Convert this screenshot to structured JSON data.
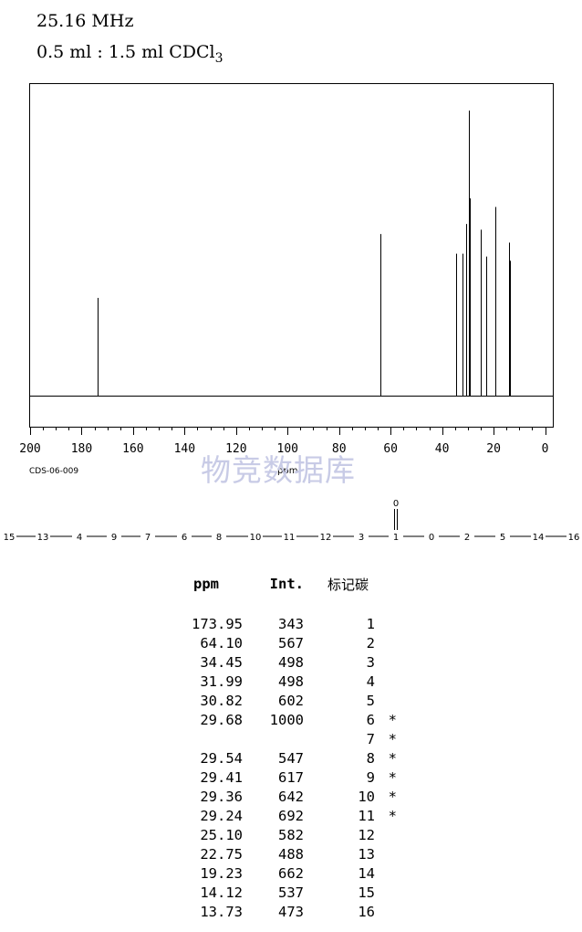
{
  "header": {
    "frequency": "25.16 MHz",
    "solvent_prefix": "0.5 ml : 1.5 ml CDCl",
    "solvent_subscript": "3"
  },
  "chart_data": {
    "type": "line",
    "title": "",
    "xlabel": "ppm",
    "ylabel": "",
    "xlim": [
      200,
      -3
    ],
    "x_ticks": [
      "200",
      "180",
      "160",
      "140",
      "120",
      "100",
      "80",
      "60",
      "40",
      "20",
      "0"
    ],
    "x_tick_values": [
      200,
      180,
      160,
      140,
      120,
      100,
      80,
      60,
      40,
      20,
      0
    ],
    "ylim": [
      0,
      1000
    ],
    "grid": false,
    "peaks": [
      {
        "ppm": 173.95,
        "intensity": 343
      },
      {
        "ppm": 64.1,
        "intensity": 567
      },
      {
        "ppm": 34.45,
        "intensity": 498
      },
      {
        "ppm": 31.99,
        "intensity": 498
      },
      {
        "ppm": 30.82,
        "intensity": 602
      },
      {
        "ppm": 29.68,
        "intensity": 1000
      },
      {
        "ppm": 29.54,
        "intensity": 547
      },
      {
        "ppm": 29.41,
        "intensity": 617
      },
      {
        "ppm": 29.36,
        "intensity": 642
      },
      {
        "ppm": 29.24,
        "intensity": 692
      },
      {
        "ppm": 25.1,
        "intensity": 582
      },
      {
        "ppm": 22.75,
        "intensity": 488
      },
      {
        "ppm": 19.23,
        "intensity": 662
      },
      {
        "ppm": 14.12,
        "intensity": 537
      },
      {
        "ppm": 13.73,
        "intensity": 473
      }
    ]
  },
  "spectrum_code": "CDS-06-009",
  "watermark": "物竞数据库",
  "structure": {
    "chain_left": [
      "15",
      "13",
      "4",
      "9",
      "7",
      "6",
      "8",
      "10",
      "11",
      "12",
      "3",
      "1"
    ],
    "chain_right": [
      "0",
      "2",
      "5",
      "14",
      "16"
    ],
    "carbonyl_oxygen": "0"
  },
  "table": {
    "headers": {
      "ppm": "ppm",
      "int": "Int.",
      "carbon": "标记碳"
    },
    "rows": [
      {
        "ppm": "173.95",
        "int": "343",
        "c": "1",
        "star": ""
      },
      {
        "ppm": "64.10",
        "int": "567",
        "c": "2",
        "star": ""
      },
      {
        "ppm": "34.45",
        "int": "498",
        "c": "3",
        "star": ""
      },
      {
        "ppm": "31.99",
        "int": "498",
        "c": "4",
        "star": ""
      },
      {
        "ppm": "30.82",
        "int": "602",
        "c": "5",
        "star": ""
      },
      {
        "ppm": "29.68",
        "int": "1000",
        "c": "6",
        "star": "*"
      },
      {
        "ppm": "",
        "int": "",
        "c": "7",
        "star": "*"
      },
      {
        "ppm": "29.54",
        "int": "547",
        "c": "8",
        "star": "*"
      },
      {
        "ppm": "29.41",
        "int": "617",
        "c": "9",
        "star": "*"
      },
      {
        "ppm": "29.36",
        "int": "642",
        "c": "10",
        "star": "*"
      },
      {
        "ppm": "29.24",
        "int": "692",
        "c": "11",
        "star": "*"
      },
      {
        "ppm": "25.10",
        "int": "582",
        "c": "12",
        "star": ""
      },
      {
        "ppm": "22.75",
        "int": "488",
        "c": "13",
        "star": ""
      },
      {
        "ppm": "19.23",
        "int": "662",
        "c": "14",
        "star": ""
      },
      {
        "ppm": "14.12",
        "int": "537",
        "c": "15",
        "star": ""
      },
      {
        "ppm": "13.73",
        "int": "473",
        "c": "16",
        "star": ""
      }
    ]
  }
}
